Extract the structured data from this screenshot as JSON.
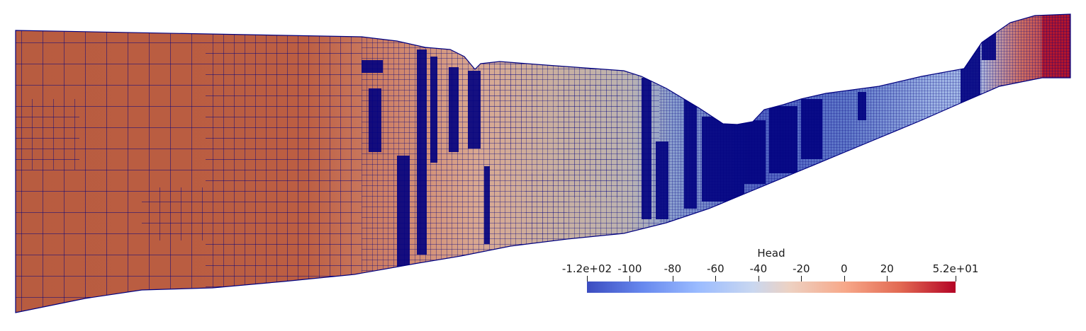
{
  "view": {
    "description_icon": "mesh-field-plot"
  },
  "colorbar": {
    "title": "Head",
    "ticks": [
      {
        "label": "-1.2e+02",
        "value": -120
      },
      {
        "label": "-100",
        "value": -100
      },
      {
        "label": "-80",
        "value": -80
      },
      {
        "label": "-60",
        "value": -60
      },
      {
        "label": "-40",
        "value": -40
      },
      {
        "label": "-20",
        "value": -20
      },
      {
        "label": "0",
        "value": 0
      },
      {
        "label": "20",
        "value": 20
      },
      {
        "label": "5.2e+01",
        "value": 52
      }
    ],
    "range": [
      -120,
      52
    ],
    "colormap": [
      "#3b4cc0",
      "#6788ee",
      "#9abbff",
      "#c9d7f0",
      "#edd1c2",
      "#f7a889",
      "#e26952",
      "#b40426"
    ]
  },
  "mesh": {
    "edge_color": "#00007f",
    "dark_fill": "#000080"
  }
}
